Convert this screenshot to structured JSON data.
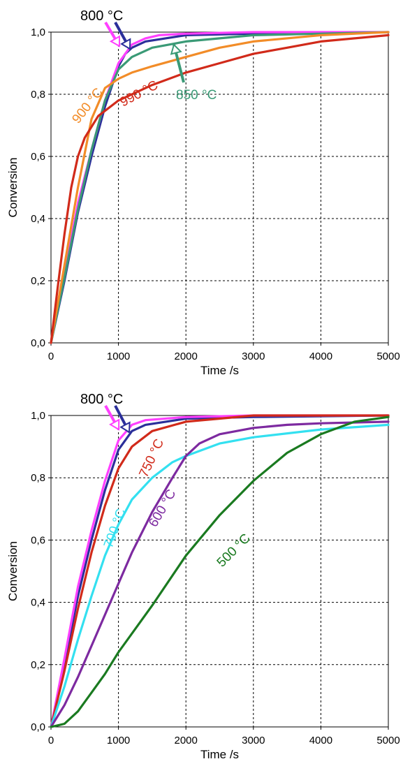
{
  "chart_data": [
    {
      "type": "line",
      "title": "",
      "xlabel": "Time /s",
      "ylabel": "Conversion",
      "xlim": [
        0,
        5000
      ],
      "ylim": [
        0,
        1
      ],
      "xticks": [
        "0",
        "1000",
        "2000",
        "3000",
        "4000",
        "5000"
      ],
      "yticks": [
        "0,0",
        "0,2",
        "0,4",
        "0,6",
        "0,8",
        "1,0"
      ],
      "grid": true,
      "series": [
        {
          "name": "800 °C",
          "color": "#2b2f9a",
          "x": [
            0,
            200,
            400,
            600,
            800,
            1000,
            1100,
            1200,
            1400,
            2000,
            3000,
            5000
          ],
          "y": [
            0,
            0.2,
            0.42,
            0.6,
            0.76,
            0.89,
            0.93,
            0.95,
            0.97,
            0.99,
            0.995,
            1.0
          ]
        },
        {
          "name": "800 °C",
          "color": "#ff40ff",
          "x": [
            0,
            200,
            400,
            600,
            800,
            1000,
            1200,
            1400,
            1600,
            2000,
            3000,
            5000
          ],
          "y": [
            0,
            0.22,
            0.45,
            0.62,
            0.78,
            0.9,
            0.96,
            0.98,
            0.99,
            0.995,
            1.0,
            1.0
          ]
        },
        {
          "name": "850 °C",
          "color": "#3a9a76",
          "x": [
            0,
            200,
            400,
            600,
            800,
            1000,
            1200,
            1500,
            2000,
            2500,
            3000,
            4000,
            5000
          ],
          "y": [
            0,
            0.21,
            0.43,
            0.62,
            0.78,
            0.88,
            0.92,
            0.95,
            0.97,
            0.98,
            0.99,
            0.995,
            1.0
          ]
        },
        {
          "name": "900 °C",
          "color": "#f28c28",
          "x": [
            0,
            200,
            400,
            600,
            800,
            1000,
            1200,
            1500,
            2000,
            2500,
            3000,
            4000,
            5000
          ],
          "y": [
            0,
            0.25,
            0.5,
            0.72,
            0.82,
            0.85,
            0.87,
            0.89,
            0.92,
            0.95,
            0.97,
            0.99,
            1.0
          ]
        },
        {
          "name": "990 °C",
          "color": "#d12a1a",
          "x": [
            0,
            100,
            200,
            300,
            400,
            500,
            700,
            1000,
            1500,
            2000,
            2500,
            3000,
            3500,
            4000,
            4500,
            5000
          ],
          "y": [
            0,
            0.18,
            0.35,
            0.5,
            0.6,
            0.66,
            0.73,
            0.78,
            0.83,
            0.87,
            0.9,
            0.93,
            0.95,
            0.97,
            0.98,
            0.99
          ]
        }
      ],
      "annotations": [
        {
          "text": "800 °C",
          "color": "#000000"
        },
        {
          "text": "900 °C",
          "color": "#f28c28"
        },
        {
          "text": "990 °C",
          "color": "#d12a1a"
        },
        {
          "text": "850 °C",
          "color": "#3a9a76"
        }
      ]
    },
    {
      "type": "line",
      "title": "",
      "xlabel": "Time /s",
      "ylabel": "Conversion",
      "xlim": [
        0,
        5000
      ],
      "ylim": [
        0,
        1
      ],
      "xticks": [
        "0",
        "1000",
        "2000",
        "3000",
        "4000",
        "5000"
      ],
      "yticks": [
        "0,0",
        "0,2",
        "0,4",
        "0,6",
        "0,8",
        "1,0"
      ],
      "grid": true,
      "series": [
        {
          "name": "800 °C",
          "color": "#2b2f9a",
          "x": [
            0,
            200,
            400,
            600,
            800,
            1000,
            1200,
            1400,
            2000,
            3000,
            5000
          ],
          "y": [
            0,
            0.2,
            0.42,
            0.6,
            0.76,
            0.89,
            0.95,
            0.97,
            0.99,
            0.995,
            1.0
          ]
        },
        {
          "name": "800 °C",
          "color": "#ff40ff",
          "x": [
            0,
            200,
            400,
            600,
            800,
            1000,
            1200,
            1400,
            2000,
            3000,
            5000
          ],
          "y": [
            0,
            0.22,
            0.45,
            0.63,
            0.79,
            0.92,
            0.97,
            0.985,
            0.995,
            1.0,
            1.0
          ]
        },
        {
          "name": "750 °C",
          "color": "#d12a1a",
          "x": [
            0,
            200,
            400,
            600,
            800,
            1000,
            1200,
            1500,
            2000,
            2500,
            3000,
            5000
          ],
          "y": [
            0,
            0.18,
            0.38,
            0.56,
            0.71,
            0.83,
            0.9,
            0.95,
            0.98,
            0.99,
            1.0,
            1.0
          ]
        },
        {
          "name": "700 °C",
          "color": "#33e0f0",
          "x": [
            0,
            200,
            400,
            600,
            800,
            1000,
            1200,
            1500,
            1800,
            2000,
            2500,
            3000,
            4000,
            5000
          ],
          "y": [
            0,
            0.13,
            0.28,
            0.42,
            0.55,
            0.65,
            0.73,
            0.8,
            0.85,
            0.87,
            0.91,
            0.93,
            0.955,
            0.97
          ]
        },
        {
          "name": "600 °C",
          "color": "#7d2aa0",
          "x": [
            0,
            200,
            400,
            600,
            800,
            1000,
            1200,
            1500,
            1800,
            2000,
            2200,
            2500,
            3000,
            3500,
            4000,
            5000
          ],
          "y": [
            0,
            0.07,
            0.16,
            0.26,
            0.36,
            0.46,
            0.56,
            0.69,
            0.8,
            0.87,
            0.91,
            0.94,
            0.96,
            0.97,
            0.975,
            0.98
          ]
        },
        {
          "name": "500 °C",
          "color": "#1a7a20",
          "x": [
            0,
            100,
            200,
            400,
            600,
            800,
            1000,
            1500,
            2000,
            2500,
            3000,
            3500,
            4000,
            4500,
            5000
          ],
          "y": [
            0,
            0.005,
            0.01,
            0.05,
            0.11,
            0.17,
            0.24,
            0.39,
            0.55,
            0.68,
            0.79,
            0.88,
            0.94,
            0.98,
            0.995
          ]
        }
      ],
      "annotations": [
        {
          "text": "800 °C",
          "color": "#000000"
        },
        {
          "text": "750 °C",
          "color": "#d12a1a"
        },
        {
          "text": "700 °C",
          "color": "#33e0f0"
        },
        {
          "text": "600 °C",
          "color": "#7d2aa0"
        },
        {
          "text": "500 °C",
          "color": "#1a7a20"
        }
      ]
    }
  ]
}
